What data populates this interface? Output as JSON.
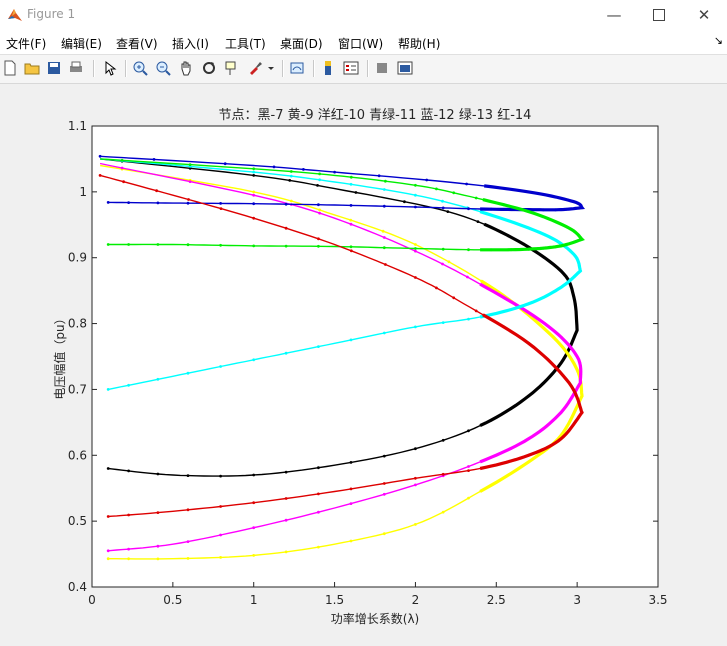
{
  "window": {
    "title": "Figure 1"
  },
  "menu": [
    "文件(F)",
    "编辑(E)",
    "查看(V)",
    "插入(I)",
    "工具(T)",
    "桌面(D)",
    "窗口(W)",
    "帮助(H)"
  ],
  "toolbar_icons": [
    "new-figure-icon",
    "open-file-icon",
    "save-icon",
    "print-icon",
    "select-arrow-icon",
    "zoom-in-icon",
    "zoom-out-icon",
    "pan-hand-icon",
    "rotate-3d-icon",
    "data-cursor-icon",
    "brush-icon",
    "link-plot-icon",
    "colorbar-icon",
    "legend-icon",
    "hide-plot-tools-icon",
    "show-plot-tools-icon"
  ],
  "chart_data": {
    "type": "line",
    "title": "节点：黑-7 黄-9 洋红-10 青绿-11 蓝-12 绿-13 红-14",
    "xlabel": "功率增长系数(λ)",
    "ylabel": "电压幅值（pu）",
    "xlim": [
      0,
      3.5
    ],
    "ylim": [
      0.4,
      1.1
    ],
    "xticks": [
      "0",
      "0.5",
      "1",
      "1.5",
      "2",
      "2.5",
      "3",
      "3.5"
    ],
    "yticks": [
      "0.4",
      "0.5",
      "0.6",
      "0.7",
      "0.8",
      "0.9",
      "1",
      "1.1"
    ],
    "grid": false,
    "marker": "dot",
    "curve_note": "PV curves: each series traced from x=0.1 along lower branch to nose point then back along upper branch",
    "series": [
      {
        "name": "黑-7",
        "color": "#000000",
        "lower": [
          [
            0.1,
            0.58
          ],
          [
            0.5,
            0.57
          ],
          [
            1.0,
            0.57
          ],
          [
            1.5,
            0.585
          ],
          [
            2.0,
            0.61
          ],
          [
            2.4,
            0.645
          ],
          [
            2.7,
            0.69
          ],
          [
            2.9,
            0.74
          ],
          [
            3.0,
            0.79
          ]
        ],
        "upper": [
          [
            3.0,
            0.79
          ],
          [
            2.98,
            0.84
          ],
          [
            2.9,
            0.88
          ],
          [
            2.6,
            0.93
          ],
          [
            2.2,
            0.97
          ],
          [
            1.5,
            1.005
          ],
          [
            1.0,
            1.025
          ],
          [
            0.05,
            1.05
          ]
        ]
      },
      {
        "name": "黄-9",
        "color": "#ffff00",
        "lower": [
          [
            0.1,
            0.443
          ],
          [
            0.5,
            0.443
          ],
          [
            1.0,
            0.448
          ],
          [
            1.5,
            0.465
          ],
          [
            2.0,
            0.495
          ],
          [
            2.4,
            0.545
          ],
          [
            2.7,
            0.59
          ],
          [
            2.9,
            0.63
          ],
          [
            3.03,
            0.69
          ]
        ],
        "upper": [
          [
            3.03,
            0.69
          ],
          [
            3.0,
            0.73
          ],
          [
            2.85,
            0.78
          ],
          [
            2.5,
            0.85
          ],
          [
            2.0,
            0.92
          ],
          [
            1.5,
            0.965
          ],
          [
            1.0,
            1.0
          ],
          [
            0.05,
            1.04
          ]
        ]
      },
      {
        "name": "洋红-10",
        "color": "#ff00ff",
        "lower": [
          [
            0.1,
            0.455
          ],
          [
            0.5,
            0.465
          ],
          [
            1.0,
            0.49
          ],
          [
            1.5,
            0.52
          ],
          [
            2.0,
            0.555
          ],
          [
            2.4,
            0.59
          ],
          [
            2.7,
            0.625
          ],
          [
            2.9,
            0.665
          ],
          [
            3.02,
            0.71
          ]
        ],
        "upper": [
          [
            3.02,
            0.71
          ],
          [
            3.0,
            0.75
          ],
          [
            2.8,
            0.8
          ],
          [
            2.4,
            0.86
          ],
          [
            2.0,
            0.91
          ],
          [
            1.5,
            0.96
          ],
          [
            1.0,
            0.995
          ],
          [
            0.05,
            1.043
          ]
        ]
      },
      {
        "name": "青绿-11",
        "color": "#00ffff",
        "lower": [
          [
            0.1,
            0.7
          ],
          [
            0.5,
            0.72
          ],
          [
            1.0,
            0.745
          ],
          [
            1.5,
            0.77
          ],
          [
            2.0,
            0.795
          ],
          [
            2.4,
            0.81
          ],
          [
            2.7,
            0.83
          ],
          [
            2.9,
            0.855
          ],
          [
            3.02,
            0.88
          ]
        ],
        "upper": [
          [
            3.02,
            0.88
          ],
          [
            2.98,
            0.905
          ],
          [
            2.8,
            0.935
          ],
          [
            2.4,
            0.97
          ],
          [
            2.0,
            0.995
          ],
          [
            1.5,
            1.015
          ],
          [
            1.0,
            1.03
          ],
          [
            0.05,
            1.05
          ]
        ]
      },
      {
        "name": "蓝-12",
        "color": "#0000cc",
        "lower": [
          [
            0.1,
            0.984
          ],
          [
            0.5,
            0.983
          ],
          [
            1.0,
            0.982
          ],
          [
            1.5,
            0.98
          ],
          [
            2.0,
            0.977
          ],
          [
            2.4,
            0.974
          ],
          [
            2.7,
            0.973
          ],
          [
            2.9,
            0.973
          ],
          [
            3.03,
            0.976
          ]
        ],
        "upper": [
          [
            3.03,
            0.976
          ],
          [
            2.98,
            0.985
          ],
          [
            2.7,
            1.0
          ],
          [
            2.2,
            1.015
          ],
          [
            1.5,
            1.03
          ],
          [
            1.0,
            1.04
          ],
          [
            0.05,
            1.054
          ]
        ]
      },
      {
        "name": "绿-13",
        "color": "#00ee00",
        "lower": [
          [
            0.1,
            0.92
          ],
          [
            0.5,
            0.92
          ],
          [
            1.0,
            0.918
          ],
          [
            1.5,
            0.917
          ],
          [
            2.0,
            0.914
          ],
          [
            2.4,
            0.912
          ],
          [
            2.7,
            0.913
          ],
          [
            2.9,
            0.918
          ],
          [
            3.03,
            0.928
          ]
        ],
        "upper": [
          [
            3.03,
            0.928
          ],
          [
            2.95,
            0.945
          ],
          [
            2.7,
            0.97
          ],
          [
            2.3,
            0.995
          ],
          [
            2.0,
            1.01
          ],
          [
            1.5,
            1.025
          ],
          [
            1.0,
            1.035
          ],
          [
            0.05,
            1.05
          ]
        ]
      },
      {
        "name": "红-14",
        "color": "#dd0000",
        "lower": [
          [
            0.1,
            0.507
          ],
          [
            0.5,
            0.515
          ],
          [
            1.0,
            0.528
          ],
          [
            1.5,
            0.545
          ],
          [
            2.0,
            0.565
          ],
          [
            2.4,
            0.58
          ],
          [
            2.7,
            0.6
          ],
          [
            2.9,
            0.625
          ],
          [
            3.03,
            0.665
          ]
        ],
        "upper": [
          [
            3.03,
            0.665
          ],
          [
            2.95,
            0.71
          ],
          [
            2.7,
            0.77
          ],
          [
            2.3,
            0.83
          ],
          [
            2.0,
            0.87
          ],
          [
            1.5,
            0.92
          ],
          [
            1.0,
            0.96
          ],
          [
            0.5,
            0.995
          ],
          [
            0.05,
            1.025
          ]
        ]
      }
    ]
  }
}
